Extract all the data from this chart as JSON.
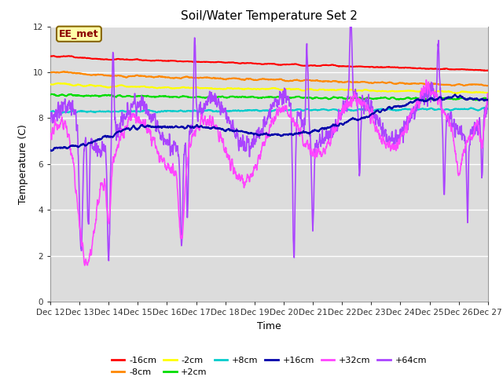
{
  "title": "Soil/Water Temperature Set 2",
  "xlabel": "Time",
  "ylabel": "Temperature (C)",
  "xlim": [
    0,
    15
  ],
  "ylim": [
    0,
    12
  ],
  "yticks": [
    0,
    2,
    4,
    6,
    8,
    10,
    12
  ],
  "xtick_labels": [
    "Dec 12",
    "Dec 13",
    "Dec 14",
    "Dec 15",
    "Dec 16",
    "Dec 17",
    "Dec 18",
    "Dec 19",
    "Dec 20",
    "Dec 21",
    "Dec 22",
    "Dec 23",
    "Dec 24",
    "Dec 25",
    "Dec 26",
    "Dec 27"
  ],
  "background_color": "#dcdcdc",
  "fig_color": "#ffffff",
  "colors": {
    "-16cm": "#ff0000",
    "-8cm": "#ff8800",
    "-2cm": "#ffff00",
    "+2cm": "#00dd00",
    "+8cm": "#00cccc",
    "+16cm": "#0000aa",
    "+32cm": "#ff44ff",
    "+64cm": "#aa44ff"
  },
  "annotation_text": "EE_met",
  "lw_smooth": 1.5,
  "lw_variable": 1.2
}
